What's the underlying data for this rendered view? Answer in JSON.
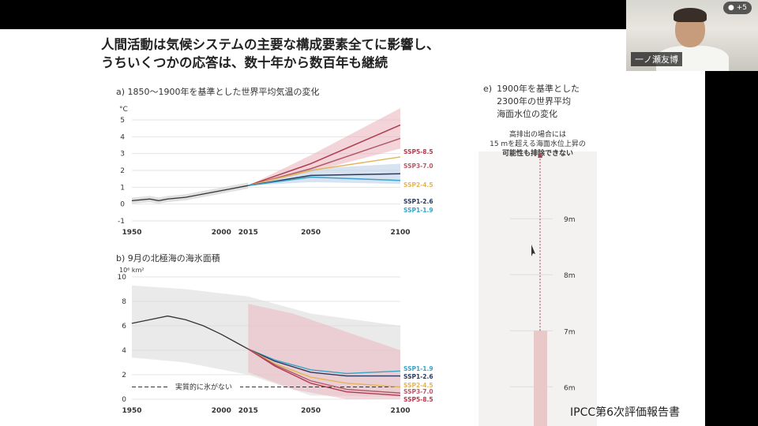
{
  "slide": {
    "title_line1": "人間活動は気候システムの主要な構成要素全てに影響し、",
    "title_line2": "うちいくつかの応答は、数十年から数百年も継続",
    "source": "IPCC第6次評価報告書"
  },
  "video": {
    "participant_name": "一ノ瀬友博",
    "participants_count": "+5",
    "participants_icon": "person-icon"
  },
  "chart_data": [
    {
      "type": "line",
      "title": "a) 1850～1900年を基準とした世界平均気温の変化",
      "ylabel": "°C",
      "xlabel": "",
      "x_ticks": [
        "1950",
        "2000",
        "2015",
        "2050",
        "2100"
      ],
      "y_ticks": [
        "5",
        "4",
        "3",
        "2",
        "1",
        "0",
        "-1"
      ],
      "xlim": [
        1950,
        2100
      ],
      "ylim": [
        -1,
        5
      ],
      "grid": true,
      "historical": {
        "x": [
          1950,
          1960,
          1965,
          1970,
          1980,
          1990,
          2000,
          2005,
          2015
        ],
        "y": [
          0.2,
          0.3,
          0.2,
          0.3,
          0.4,
          0.6,
          0.8,
          0.9,
          1.1
        ]
      },
      "series": [
        {
          "name": "SSP5-8.5",
          "color": "#b03a4e",
          "x": [
            2015,
            2050,
            2100
          ],
          "y": [
            1.1,
            2.4,
            4.7
          ],
          "band": [
            [
              1.1,
              1.1
            ],
            [
              1.9,
              2.9
            ],
            [
              3.3,
              5.7
            ]
          ]
        },
        {
          "name": "SSP3-7.0",
          "color": "#b25a6a",
          "x": [
            2015,
            2050,
            2100
          ],
          "y": [
            1.1,
            2.1,
            3.9
          ],
          "band": null
        },
        {
          "name": "SSP2-4.5",
          "color": "#e3b45a",
          "x": [
            2015,
            2050,
            2100
          ],
          "y": [
            1.1,
            2.0,
            2.8
          ],
          "band": null
        },
        {
          "name": "SSP1-2.6",
          "color": "#2b3a5c",
          "x": [
            2015,
            2050,
            2100
          ],
          "y": [
            1.1,
            1.7,
            1.8
          ],
          "band": [
            [
              1.1,
              1.1
            ],
            [
              1.3,
              2.1
            ],
            [
              1.2,
              2.4
            ]
          ]
        },
        {
          "name": "SSP1-1.9",
          "color": "#3aa3c8",
          "x": [
            2015,
            2050,
            2100
          ],
          "y": [
            1.1,
            1.6,
            1.4
          ],
          "band": null
        }
      ]
    },
    {
      "type": "line",
      "title": "b) 9月の北極海の海氷面積",
      "ylabel": "10⁶ km²",
      "xlabel": "",
      "x_ticks": [
        "1950",
        "2000",
        "2015",
        "2050",
        "2100"
      ],
      "y_ticks": [
        "10",
        "8",
        "6",
        "4",
        "2",
        "0"
      ],
      "xlim": [
        1950,
        2100
      ],
      "ylim": [
        0,
        10
      ],
      "grid": true,
      "annotation": "実質的に氷がない",
      "ice_free_threshold": 1,
      "historical": {
        "x": [
          1950,
          1960,
          1970,
          1980,
          1990,
          2000,
          2010,
          2015
        ],
        "y": [
          6.2,
          6.5,
          6.8,
          6.5,
          6.0,
          5.3,
          4.5,
          4.1
        ]
      },
      "series": [
        {
          "name": "SSP1-1.9",
          "color": "#3aa3c8",
          "x": [
            2015,
            2030,
            2050,
            2070,
            2100
          ],
          "y": [
            4.1,
            3.2,
            2.4,
            2.1,
            2.3
          ]
        },
        {
          "name": "SSP1-2.6",
          "color": "#2b3a5c",
          "x": [
            2015,
            2030,
            2050,
            2070,
            2100
          ],
          "y": [
            4.1,
            3.1,
            2.2,
            1.9,
            1.9
          ]
        },
        {
          "name": "SSP2-4.5",
          "color": "#e3b45a",
          "x": [
            2015,
            2030,
            2050,
            2070,
            2100
          ],
          "y": [
            4.1,
            2.9,
            1.8,
            1.3,
            1.0
          ]
        },
        {
          "name": "SSP3-7.0",
          "color": "#b25a6a",
          "x": [
            2015,
            2030,
            2050,
            2070,
            2100
          ],
          "y": [
            4.1,
            2.8,
            1.5,
            0.8,
            0.5
          ]
        },
        {
          "name": "SSP5-8.5",
          "color": "#b03a4e",
          "x": [
            2015,
            2030,
            2050,
            2070,
            2100
          ],
          "y": [
            4.1,
            2.7,
            1.3,
            0.6,
            0.3
          ]
        }
      ]
    },
    {
      "type": "bar",
      "title": "e) 1900年を基準とした 2300年の世界平均 海面水位の変化",
      "title_lines": [
        "1900年を基準とした",
        "2300年の世界平均",
        "海面水位の変化"
      ],
      "note_lines": [
        "高排出の場合には",
        "15 mを超える海面水位上昇の",
        "可能性も排除できない"
      ],
      "y_ticks": [
        "9m",
        "8m",
        "7m",
        "6m"
      ],
      "ylim": [
        5.3,
        10.2
      ],
      "bar_top": 7.0,
      "arrow_to": 10.2,
      "bar_color": "#e8c9c8",
      "arrow_color": "#b03a4e"
    }
  ]
}
